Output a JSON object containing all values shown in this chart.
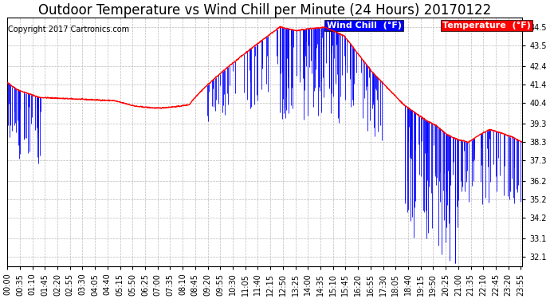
{
  "title": "Outdoor Temperature vs Wind Chill per Minute (24 Hours) 20170122",
  "copyright_text": "Copyright 2017 Cartronics.com",
  "wind_chill_label": "Wind Chill  (°F)",
  "temperature_label": "Temperature  (°F)",
  "wind_chill_color": "#0000FF",
  "temperature_color": "#FF0000",
  "legend_wind_chill_bg": "#0000FF",
  "legend_temp_bg": "#FF0000",
  "background_color": "#FFFFFF",
  "plot_bg_color": "#FFFFFF",
  "grid_color": "#AAAAAA",
  "ylim": [
    31.6,
    45.0
  ],
  "yticks": [
    32.1,
    33.1,
    34.2,
    35.2,
    36.2,
    37.3,
    38.3,
    39.3,
    40.4,
    41.4,
    42.4,
    43.5,
    44.5
  ],
  "title_fontsize": 12,
  "copyright_fontsize": 7,
  "tick_fontsize": 7,
  "legend_fontsize": 8,
  "num_minutes": 1440,
  "x_tick_interval": 35
}
